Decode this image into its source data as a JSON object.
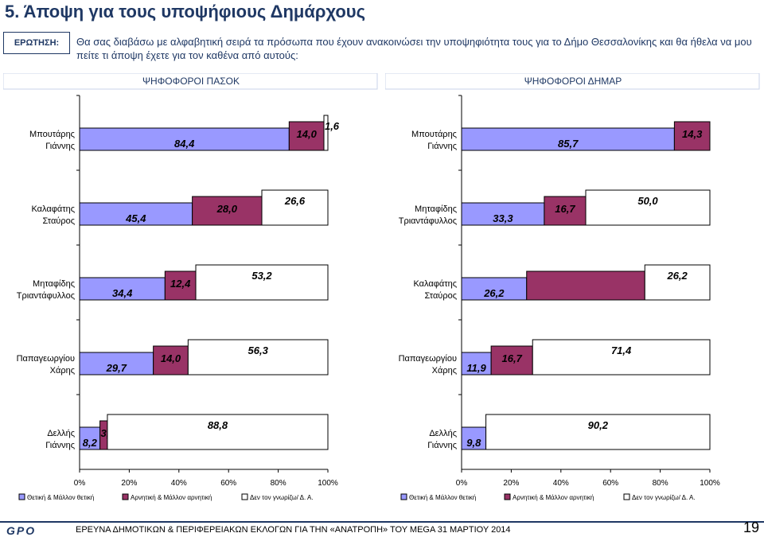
{
  "header": {
    "title": "5.  Άποψη για τους υποψήφιους Δημάρχους",
    "question_label": "ΕΡΩΤΗΣΗ:",
    "question_text": "Θα σας διαβάσω με αλφαβητική σειρά τα πρόσωπα που έχουν ανακοινώσει την υποψηφιότητα τους για το Δήμο Θεσσαλονίκης και θα ήθελα να μου πείτε τι άποψη έχετε για τον καθένα από αυτούς:"
  },
  "colors": {
    "positive": "#9999ff",
    "negative": "#993366",
    "dontknow": "#ffffff",
    "title": "#1f3864"
  },
  "chart_data": [
    {
      "type": "bar",
      "stacked": "percent",
      "orientation": "horizontal",
      "title": "ΨΗΦΟΦΟΡΟΙ ΠΑΣΟΚ",
      "categories": [
        "Μπουτάρης Γιάννης",
        "Καλαφάτης Σταύρος",
        "Μηταφίδης Τριαντάφυλλος",
        "Παπαγεωργίου Χάρης",
        "Δελλής Γιάννης"
      ],
      "series": [
        {
          "name": "Θετική & Μάλλον θετική",
          "values": [
            84.4,
            45.4,
            34.4,
            29.7,
            8.2
          ],
          "labels": [
            "84,4",
            "45,4",
            "34,4",
            "29,7",
            "8,2"
          ]
        },
        {
          "name": "Αρνητική & Μάλλον αρνητική",
          "values": [
            14.0,
            28.0,
            12.4,
            14.0,
            3.0
          ],
          "labels": [
            "14,0",
            "28,0",
            "12,4",
            "14,0",
            "3,0"
          ]
        },
        {
          "name": "Δεν τον γνωρίζω/ Δ. Α.",
          "values": [
            1.6,
            26.6,
            53.2,
            56.3,
            88.8
          ],
          "labels": [
            "1,6",
            "26,6",
            "53,2",
            "56,3",
            "88,8"
          ]
        }
      ],
      "xlim": [
        0,
        100
      ],
      "xticks": [
        "0%",
        "20%",
        "40%",
        "60%",
        "80%",
        "100%"
      ],
      "legend": "bottom"
    },
    {
      "type": "bar",
      "stacked": "percent",
      "orientation": "horizontal",
      "title": "ΨΗΦΟΦΟΡΟΙ ΔΗΜΑΡ",
      "categories": [
        "Μπουτάρης Γιάννης",
        "Μηταφίδης Τριαντάφυλλος",
        "Καλαφάτης Σταύρος",
        "Παπαγεωργίου Χάρης",
        "Δελλής Γιάννης"
      ],
      "series": [
        {
          "name": "Θετική & Μάλλον θετική",
          "values": [
            85.7,
            33.3,
            26.2,
            11.9,
            9.8
          ],
          "labels": [
            "85,7",
            "33,3",
            "26,2",
            "11,9",
            "9,8"
          ]
        },
        {
          "name": "Αρνητική & Μάλλον αρνητική",
          "values": [
            14.3,
            16.7,
            47.6,
            16.7,
            0.0
          ],
          "labels": [
            "14,3",
            "16,7",
            "",
            "16,7",
            ""
          ]
        },
        {
          "name": "Δεν τον γνωρίζω/ Δ. Α.",
          "values": [
            0.0,
            50.0,
            26.2,
            71.4,
            90.2
          ],
          "labels": [
            "",
            "50,0",
            "26,2",
            "71,4",
            "90,2"
          ]
        }
      ],
      "xlim": [
        0,
        100
      ],
      "xticks": [
        "0%",
        "20%",
        "40%",
        "60%",
        "80%",
        "100%"
      ],
      "legend": "bottom"
    }
  ],
  "footer": {
    "logo": "GPO",
    "text": "ΕΡΕΥΝΑ ΔΗΜΟΤΙΚΩΝ & ΠΕΡΙΦΕΡΕΙΑΚΩΝ ΕΚΛΟΓΩΝ ΓΙΑ ΤΗΝ «ΑΝΑΤΡΟΠΗ» ΤΟΥ MEGA  31 ΜΑΡΤΙΟΥ 2014",
    "page": "19"
  }
}
